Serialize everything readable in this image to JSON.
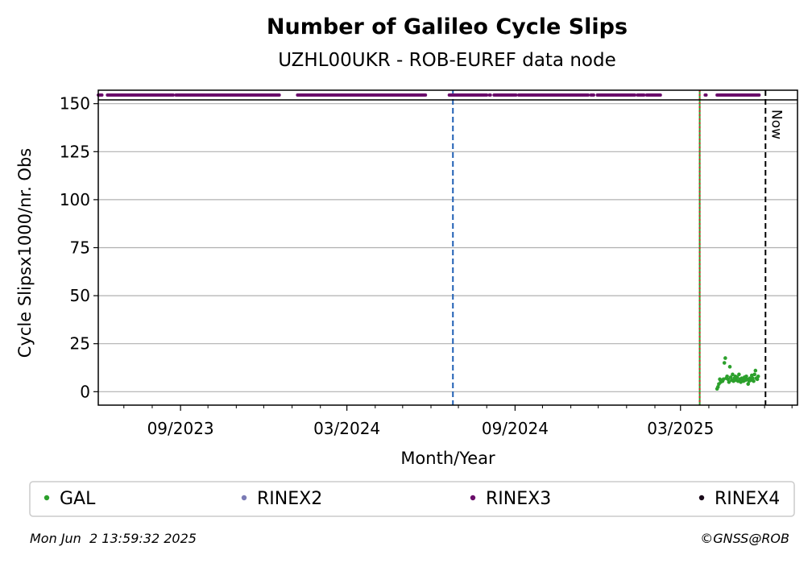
{
  "chart_data": {
    "type": "scatter",
    "title": "Number of Galileo Cycle Slips",
    "subtitle": "UZHL00UKR - ROB-EUREF data node",
    "xlabel": "Month/Year",
    "ylabel": "Cycle Slipsx1000/nr. Obs",
    "xlim": [
      "2023-06-03",
      "2025-07-07"
    ],
    "ylim": [
      -7,
      157
    ],
    "yticks": [
      0,
      25,
      50,
      75,
      100,
      125,
      150
    ],
    "xticks": [
      {
        "date": "2023-09-01",
        "label": "09/2023"
      },
      {
        "date": "2024-03-01",
        "label": "03/2024"
      },
      {
        "date": "2024-09-01",
        "label": "09/2024"
      },
      {
        "date": "2025-03-01",
        "label": "03/2025"
      }
    ],
    "x_minor_ticks": [
      "2023-07-01",
      "2023-08-01",
      "2023-10-01",
      "2023-11-01",
      "2023-12-01",
      "2024-01-01",
      "2024-02-01",
      "2024-04-01",
      "2024-05-01",
      "2024-06-01",
      "2024-07-01",
      "2024-08-01",
      "2024-10-01",
      "2024-11-01",
      "2024-12-01",
      "2025-01-01",
      "2025-02-01",
      "2025-04-01",
      "2025-05-01",
      "2025-06-01",
      "2025-07-01"
    ],
    "grid": "horizontal",
    "vlines": [
      {
        "date": "2024-06-25",
        "color": "#1f5fb4",
        "style": "dashed"
      },
      {
        "date": "2025-03-22",
        "color": "#2ca02c",
        "style": "solid"
      },
      {
        "date": "2025-03-22",
        "color": "#d62728",
        "style": "dotted"
      },
      {
        "date": "2025-06-02",
        "color": "#000000",
        "style": "dashed",
        "label": "Now"
      }
    ],
    "rinex_band": {
      "value": 155,
      "series": "RINEX3",
      "color": "#6a0d6a",
      "segments": [
        [
          "2023-06-03",
          "2023-06-07"
        ],
        [
          "2023-06-13",
          "2023-08-24"
        ],
        [
          "2023-08-27",
          "2023-12-18"
        ],
        [
          "2024-01-07",
          "2024-05-26"
        ],
        [
          "2024-06-21",
          "2024-08-01"
        ],
        [
          "2024-08-04",
          "2024-08-05"
        ],
        [
          "2024-08-09",
          "2024-09-02"
        ],
        [
          "2024-09-05",
          "2024-11-20"
        ],
        [
          "2024-11-23",
          "2024-11-26"
        ],
        [
          "2024-11-30",
          "2025-01-10"
        ],
        [
          "2025-01-13",
          "2025-01-20"
        ],
        [
          "2025-01-23",
          "2025-02-07"
        ],
        [
          "2025-03-28",
          "2025-03-29"
        ],
        [
          "2025-04-10",
          "2025-05-26"
        ]
      ]
    },
    "series": [
      {
        "name": "GAL",
        "color": "#2ca02c",
        "points": [
          [
            "2025-04-10",
            1.5
          ],
          [
            "2025-04-11",
            2.5
          ],
          [
            "2025-04-12",
            4
          ],
          [
            "2025-04-13",
            6.5
          ],
          [
            "2025-04-14",
            5
          ],
          [
            "2025-04-15",
            6
          ],
          [
            "2025-04-16",
            5.5
          ],
          [
            "2025-04-17",
            6.5
          ],
          [
            "2025-04-18",
            15
          ],
          [
            "2025-04-19",
            17.5
          ],
          [
            "2025-04-20",
            7
          ],
          [
            "2025-04-21",
            8
          ],
          [
            "2025-04-22",
            6.5
          ],
          [
            "2025-04-23",
            5
          ],
          [
            "2025-04-24",
            13
          ],
          [
            "2025-04-25",
            7.5
          ],
          [
            "2025-04-26",
            6
          ],
          [
            "2025-04-27",
            9
          ],
          [
            "2025-04-28",
            5.5
          ],
          [
            "2025-04-29",
            7
          ],
          [
            "2025-04-30",
            8
          ],
          [
            "2025-05-01",
            6
          ],
          [
            "2025-05-02",
            7.5
          ],
          [
            "2025-05-03",
            5.5
          ],
          [
            "2025-05-04",
            9
          ],
          [
            "2025-05-05",
            6.5
          ],
          [
            "2025-05-06",
            5
          ],
          [
            "2025-05-07",
            7
          ],
          [
            "2025-05-08",
            6
          ],
          [
            "2025-05-09",
            5.5
          ],
          [
            "2025-05-10",
            7.5
          ],
          [
            "2025-05-11",
            6
          ],
          [
            "2025-05-12",
            8
          ],
          [
            "2025-05-13",
            6.5
          ],
          [
            "2025-05-14",
            4
          ],
          [
            "2025-05-15",
            5.5
          ],
          [
            "2025-05-16",
            7
          ],
          [
            "2025-05-17",
            6
          ],
          [
            "2025-05-18",
            8.5
          ],
          [
            "2025-05-19",
            7
          ],
          [
            "2025-05-20",
            5.5
          ],
          [
            "2025-05-21",
            9
          ],
          [
            "2025-05-22",
            11
          ],
          [
            "2025-05-23",
            7
          ],
          [
            "2025-05-24",
            6.5
          ],
          [
            "2025-05-25",
            8
          ]
        ]
      }
    ],
    "legend": {
      "placement": "bottom",
      "items": [
        {
          "label": "GAL",
          "color": "#2ca02c"
        },
        {
          "label": "RINEX2",
          "color": "#7b7bb5"
        },
        {
          "label": "RINEX3",
          "color": "#6a0d6a"
        },
        {
          "label": "RINEX4",
          "color": "#1a0a1a"
        }
      ]
    },
    "now_label": "Now"
  },
  "footer": {
    "timestamp": "Mon Jun  2 13:59:32 2025",
    "credit": "©GNSS@ROB"
  }
}
